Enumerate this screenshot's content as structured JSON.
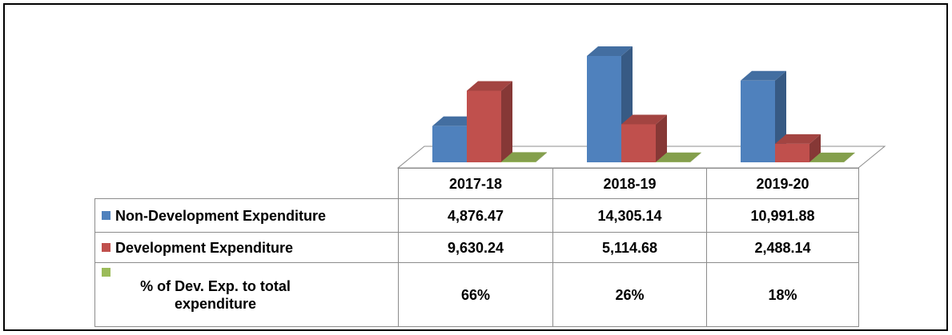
{
  "chart_data": {
    "type": "bar",
    "categories": [
      "2017-18",
      "2018-19",
      "2019-20"
    ],
    "series": [
      {
        "name": "Non-Development Expenditure",
        "color": "#4f81bd",
        "values": [
          4876.47,
          14305.14,
          10991.88
        ],
        "value_labels": [
          "4,876.47",
          "14,305.14",
          "10,991.88"
        ]
      },
      {
        "name": "Development Expenditure",
        "color": "#c0504d",
        "values": [
          9630.24,
          5114.68,
          2488.14
        ],
        "value_labels": [
          "9,630.24",
          "5,114.68",
          "2,488.14"
        ]
      },
      {
        "name": "% of Dev. Exp. to total expenditure",
        "color": "#9bbb59",
        "values": [
          66,
          26,
          18
        ],
        "value_labels": [
          "66%",
          "26%",
          "18%"
        ]
      }
    ]
  }
}
